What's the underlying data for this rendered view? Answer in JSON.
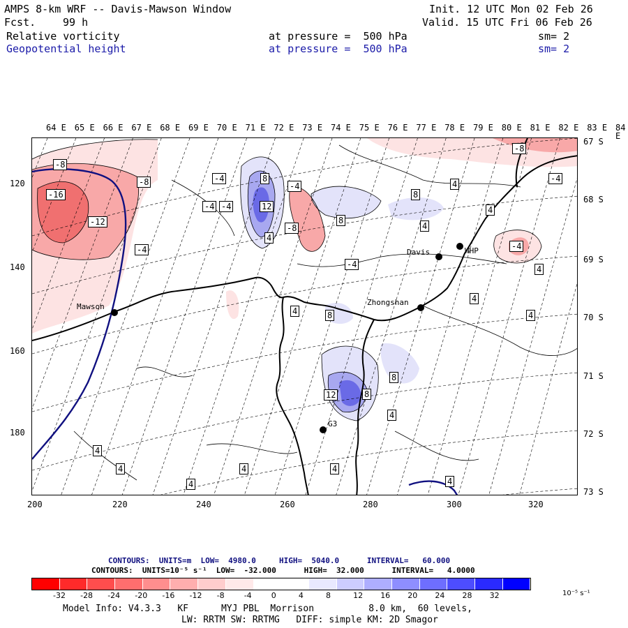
{
  "header": {
    "title": "AMPS 8-km WRF -- Davis-Mawson Window",
    "fcst_label": "Fcst.",
    "fcst_hours": "99 h",
    "init": "Init. 12 UTC Mon 02 Feb 26",
    "valid": "Valid. 15 UTC Fri 06 Feb 26",
    "field1": "Relative vorticity",
    "field1_level": "at pressure =  500 hPa",
    "field1_sm": "sm= 2",
    "field2": "Geopotential height",
    "field2_level": "at pressure =  500 hPa",
    "field2_sm": "sm= 2"
  },
  "map": {
    "longitude_labels": [
      "64 E",
      "65 E",
      "66 E",
      "67 E",
      "68 E",
      "69 E",
      "70 E",
      "71 E",
      "72 E",
      "73 E",
      "74 E",
      "75 E",
      "76 E",
      "77 E",
      "78 E",
      "79 E",
      "80 E",
      "81 E",
      "82 E",
      "83 E",
      "84 E"
    ],
    "latitude_labels": [
      "67 S",
      "68 S",
      "69 S",
      "70 S",
      "71 S",
      "72 S",
      "73 S"
    ],
    "y_ticks": [
      "120",
      "140",
      "160",
      "180"
    ],
    "x_ticks": [
      "200",
      "220",
      "240",
      "260",
      "280",
      "300",
      "320"
    ],
    "stations": [
      "Mawson",
      "Davis",
      "WHP",
      "Zhongshan",
      "G3"
    ],
    "contour_labels": [
      "-8",
      "-8",
      "-16",
      "-12",
      "-4",
      "8",
      "-4",
      "-4",
      "12",
      "4",
      "-4",
      "-8",
      "8",
      "8",
      "4",
      "-4",
      "4",
      "-4",
      "-8",
      "-4",
      "4",
      "4",
      "8",
      "4",
      "8",
      "12",
      "8",
      "4",
      "4",
      "4",
      "4",
      "4",
      "4",
      "4",
      "4",
      "-4",
      "4"
    ],
    "colors": {
      "land": "#000000",
      "height_contour": "#101080",
      "neg_strong": "#f07070",
      "neg_mid": "#f8a8a8",
      "neg_weak": "#fde3e3",
      "pos_weak": "#e3e3fa",
      "pos_mid": "#a8a8f0",
      "pos_strong": "#6a6ae6"
    }
  },
  "legend": {
    "line1": "CONTOURS:  UNITS=m  LOW=  4980.0     HIGH=  5040.0      INTERVAL=   60.000",
    "line2": "CONTOURS:  UNITS=10⁻⁵ s⁻¹  LOW=  -32.000      HIGH=  32.000      INTERVAL=   4.0000",
    "colorbar_labels": [
      "-32",
      "-28",
      "-24",
      "-20",
      "-16",
      "-12",
      "-8",
      "-4",
      "0",
      "4",
      "8",
      "12",
      "16",
      "20",
      "24",
      "28",
      "32"
    ],
    "colorbar_units": "10⁻⁵ s⁻¹",
    "colorbar_colors": [
      "#ff0000",
      "#ff2a2a",
      "#ff4d4d",
      "#ff6e6e",
      "#ff8e8e",
      "#ffaeae",
      "#ffcdcd",
      "#ffe9e9",
      "#ffffff",
      "#ffffff",
      "#e9e9ff",
      "#cdcdff",
      "#aeaeff",
      "#8e8eff",
      "#6e6eff",
      "#4d4dff",
      "#2a2aff",
      "#0000ff"
    ]
  },
  "footer": {
    "line1": "Model Info: V4.3.3   KF      MYJ PBL  Morrison          8.0 km,  60 levels,",
    "line2": "LW: RRTM SW: RRTMG   DIFF: simple KM: 2D Smagor"
  }
}
